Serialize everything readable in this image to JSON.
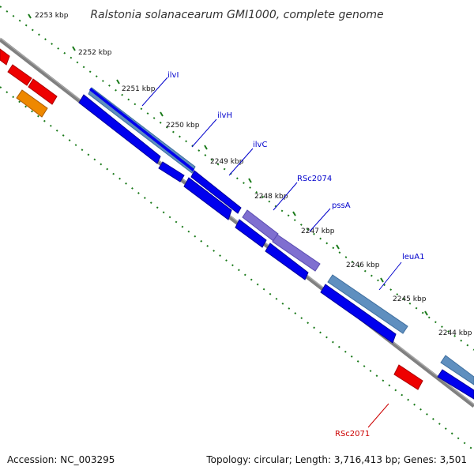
{
  "title": "Ralstonia solanacearum GMI1000, complete genome",
  "footer": {
    "accession": "Accession: NC_003295",
    "summary": "Topology: circular; Length: 3,716,413 bp; Genes: 3,501"
  },
  "colors": {
    "backbone": "#808080",
    "tick": "#1a7a1a",
    "cds": "#0000ee",
    "cds_light": "#5f8fbf",
    "other": "#7f6fd0",
    "red": "#ee0000",
    "orange": "#ee8800",
    "label_blue": "#0000cc",
    "label_red": "#cc0000"
  },
  "kbp_labels": [
    "2253 kbp",
    "2252 kbp",
    "2251 kbp",
    "2250 kbp",
    "2249 kbp",
    "2248 kbp",
    "2247 kbp",
    "2246 kbp",
    "2245 kbp",
    "2244 kbp"
  ],
  "gene_labels": [
    {
      "text": "ilvI",
      "color": "label_blue"
    },
    {
      "text": "ilvH",
      "color": "label_blue"
    },
    {
      "text": "ilvC",
      "color": "label_blue"
    },
    {
      "text": "RSc2074",
      "color": "label_blue"
    },
    {
      "text": "pssA",
      "color": "label_blue"
    },
    {
      "text": "leuA1",
      "color": "label_blue"
    },
    {
      "text": "RSc2071",
      "color": "label_red"
    }
  ]
}
